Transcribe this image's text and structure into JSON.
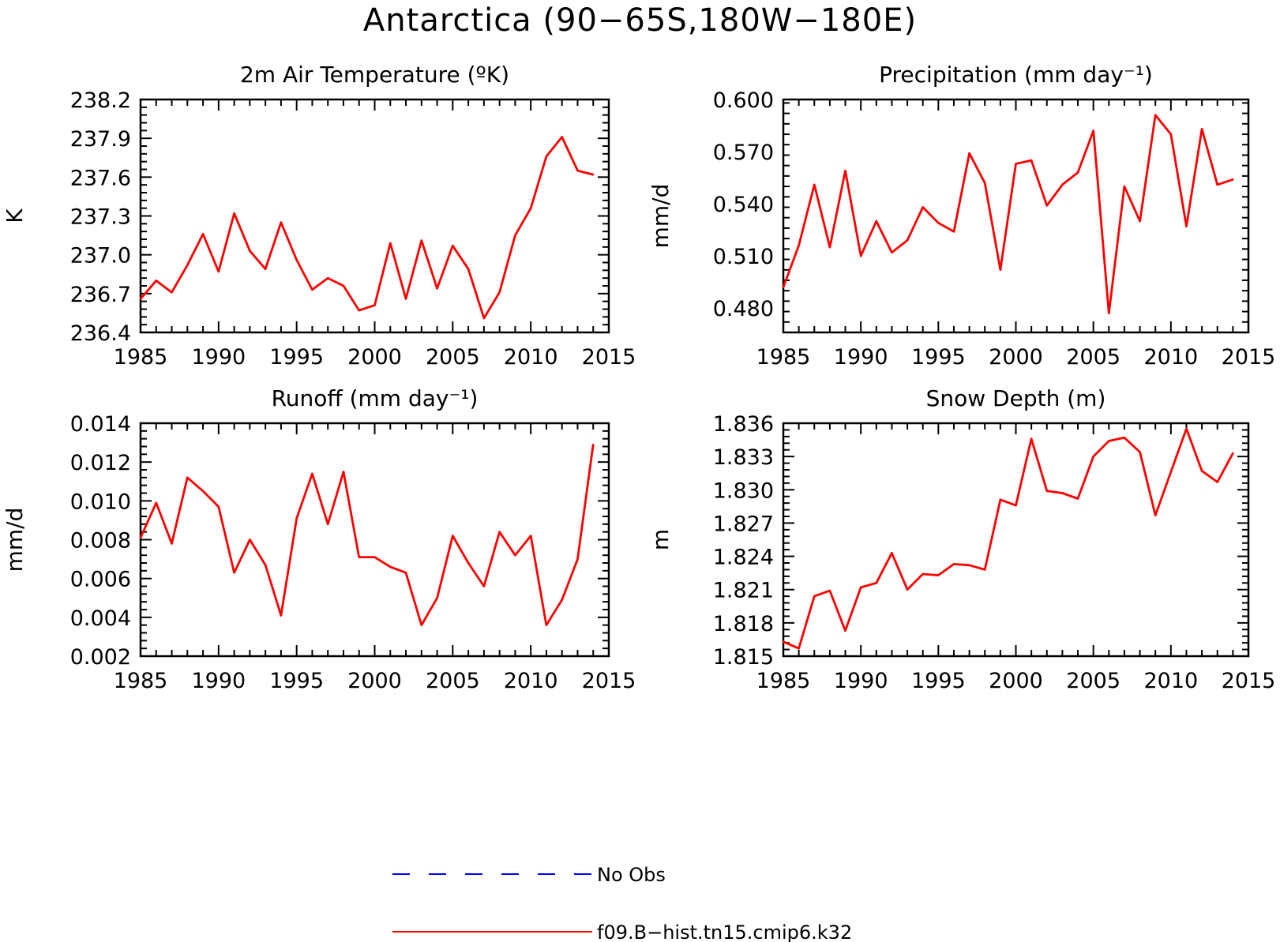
{
  "figure": {
    "title": "Antarctica (90−65S,180W−180E)"
  },
  "legend": [
    {
      "label": "No Obs",
      "color": "#0000ff",
      "style": "dashed"
    },
    {
      "label": "f09.B−hist.tn15.cmip6.k32",
      "color": "#ff0000",
      "style": "solid"
    }
  ],
  "chart_data": [
    {
      "type": "line",
      "title": "2m Air Temperature (ºK)",
      "ylabel": "K",
      "xlabel": "",
      "xlim": [
        1985,
        2015
      ],
      "ylim": [
        236.4,
        238.2
      ],
      "xticks": [
        "1985",
        "1990",
        "1995",
        "2000",
        "2005",
        "2010",
        "2015"
      ],
      "yticks": [
        "236.4",
        "236.7",
        "237.0",
        "237.3",
        "237.6",
        "237.9",
        "238.2"
      ],
      "series": [
        {
          "name": "f09.B−hist.tn15.cmip6.k32",
          "color": "#ff0000",
          "x": [
            1985,
            1986,
            1987,
            1988,
            1989,
            1990,
            1991,
            1992,
            1993,
            1994,
            1995,
            1996,
            1997,
            1998,
            1999,
            2000,
            2001,
            2002,
            2003,
            2004,
            2005,
            2006,
            2007,
            2008,
            2009,
            2010,
            2011,
            2012,
            2013,
            2014
          ],
          "values": [
            236.66,
            236.8,
            236.71,
            236.92,
            237.16,
            236.87,
            237.32,
            237.03,
            236.89,
            237.25,
            236.96,
            236.73,
            236.82,
            236.76,
            236.57,
            236.61,
            237.09,
            236.66,
            237.11,
            236.74,
            237.07,
            236.89,
            236.51,
            236.71,
            237.15,
            237.36,
            237.76,
            237.91,
            237.65,
            237.62
          ]
        }
      ]
    },
    {
      "type": "line",
      "title": "Precipitation (mm day⁻¹)",
      "ylabel": "mm/d",
      "xlabel": "",
      "xlim": [
        1985,
        2015
      ],
      "ylim": [
        0.466,
        0.6
      ],
      "xticks": [
        "1985",
        "1990",
        "1995",
        "2000",
        "2005",
        "2010",
        "2015"
      ],
      "yticks": [
        "0.480",
        "0.510",
        "0.540",
        "0.570",
        "0.600"
      ],
      "series": [
        {
          "name": "f09.B−hist.tn15.cmip6.k32",
          "color": "#ff0000",
          "x": [
            1985,
            1986,
            1987,
            1988,
            1989,
            1990,
            1991,
            1992,
            1993,
            1994,
            1995,
            1996,
            1997,
            1998,
            1999,
            2000,
            2001,
            2002,
            2003,
            2004,
            2005,
            2006,
            2007,
            2008,
            2009,
            2010,
            2011,
            2012,
            2013,
            2014
          ],
          "values": [
            0.492,
            0.516,
            0.551,
            0.515,
            0.559,
            0.51,
            0.53,
            0.512,
            0.519,
            0.538,
            0.529,
            0.524,
            0.569,
            0.552,
            0.502,
            0.563,
            0.565,
            0.539,
            0.551,
            0.558,
            0.582,
            0.477,
            0.55,
            0.53,
            0.591,
            0.58,
            0.527,
            0.583,
            0.551,
            0.554
          ]
        }
      ]
    },
    {
      "type": "line",
      "title": "Runoff (mm day⁻¹)",
      "ylabel": "mm/d",
      "xlabel": "",
      "xlim": [
        1985,
        2015
      ],
      "ylim": [
        0.002,
        0.014
      ],
      "xticks": [
        "1985",
        "1990",
        "1995",
        "2000",
        "2005",
        "2010",
        "2015"
      ],
      "yticks": [
        "0.002",
        "0.004",
        "0.006",
        "0.008",
        "0.010",
        "0.012",
        "0.014"
      ],
      "series": [
        {
          "name": "f09.B−hist.tn15.cmip6.k32",
          "color": "#ff0000",
          "x": [
            1985,
            1986,
            1987,
            1988,
            1989,
            1990,
            1991,
            1992,
            1993,
            1994,
            1995,
            1996,
            1997,
            1998,
            1999,
            2000,
            2001,
            2002,
            2003,
            2004,
            2005,
            2006,
            2007,
            2008,
            2009,
            2010,
            2011,
            2012,
            2013,
            2014
          ],
          "values": [
            0.0081,
            0.0099,
            0.0078,
            0.0112,
            0.0105,
            0.0097,
            0.0063,
            0.008,
            0.0067,
            0.0041,
            0.0091,
            0.0114,
            0.0088,
            0.0115,
            0.0071,
            0.0071,
            0.0066,
            0.0063,
            0.0036,
            0.005,
            0.0082,
            0.0068,
            0.0056,
            0.0084,
            0.0072,
            0.0082,
            0.0036,
            0.0049,
            0.007,
            0.0129
          ]
        }
      ]
    },
    {
      "type": "line",
      "title": "Snow Depth (m)",
      "ylabel": "m",
      "xlabel": "",
      "xlim": [
        1985,
        2015
      ],
      "ylim": [
        1.815,
        1.836
      ],
      "xticks": [
        "1985",
        "1990",
        "1995",
        "2000",
        "2005",
        "2010",
        "2015"
      ],
      "yticks": [
        "1.815",
        "1.818",
        "1.821",
        "1.824",
        "1.827",
        "1.830",
        "1.833",
        "1.836"
      ],
      "series": [
        {
          "name": "f09.B−hist.tn15.cmip6.k32",
          "color": "#ff0000",
          "x": [
            1985,
            1986,
            1987,
            1988,
            1989,
            1990,
            1991,
            1992,
            1993,
            1994,
            1995,
            1996,
            1997,
            1998,
            1999,
            2000,
            2001,
            2002,
            2003,
            2004,
            2005,
            2006,
            2007,
            2008,
            2009,
            2010,
            2011,
            2012,
            2013,
            2014
          ],
          "values": [
            1.8163,
            1.8157,
            1.8204,
            1.8209,
            1.8173,
            1.8212,
            1.8216,
            1.8243,
            1.821,
            1.8224,
            1.8223,
            1.8233,
            1.8232,
            1.8228,
            1.8291,
            1.8286,
            1.8346,
            1.8299,
            1.8297,
            1.8292,
            1.833,
            1.8344,
            1.8347,
            1.8334,
            1.8277,
            1.8316,
            1.8355,
            1.8317,
            1.8307,
            1.8333
          ]
        }
      ]
    }
  ]
}
